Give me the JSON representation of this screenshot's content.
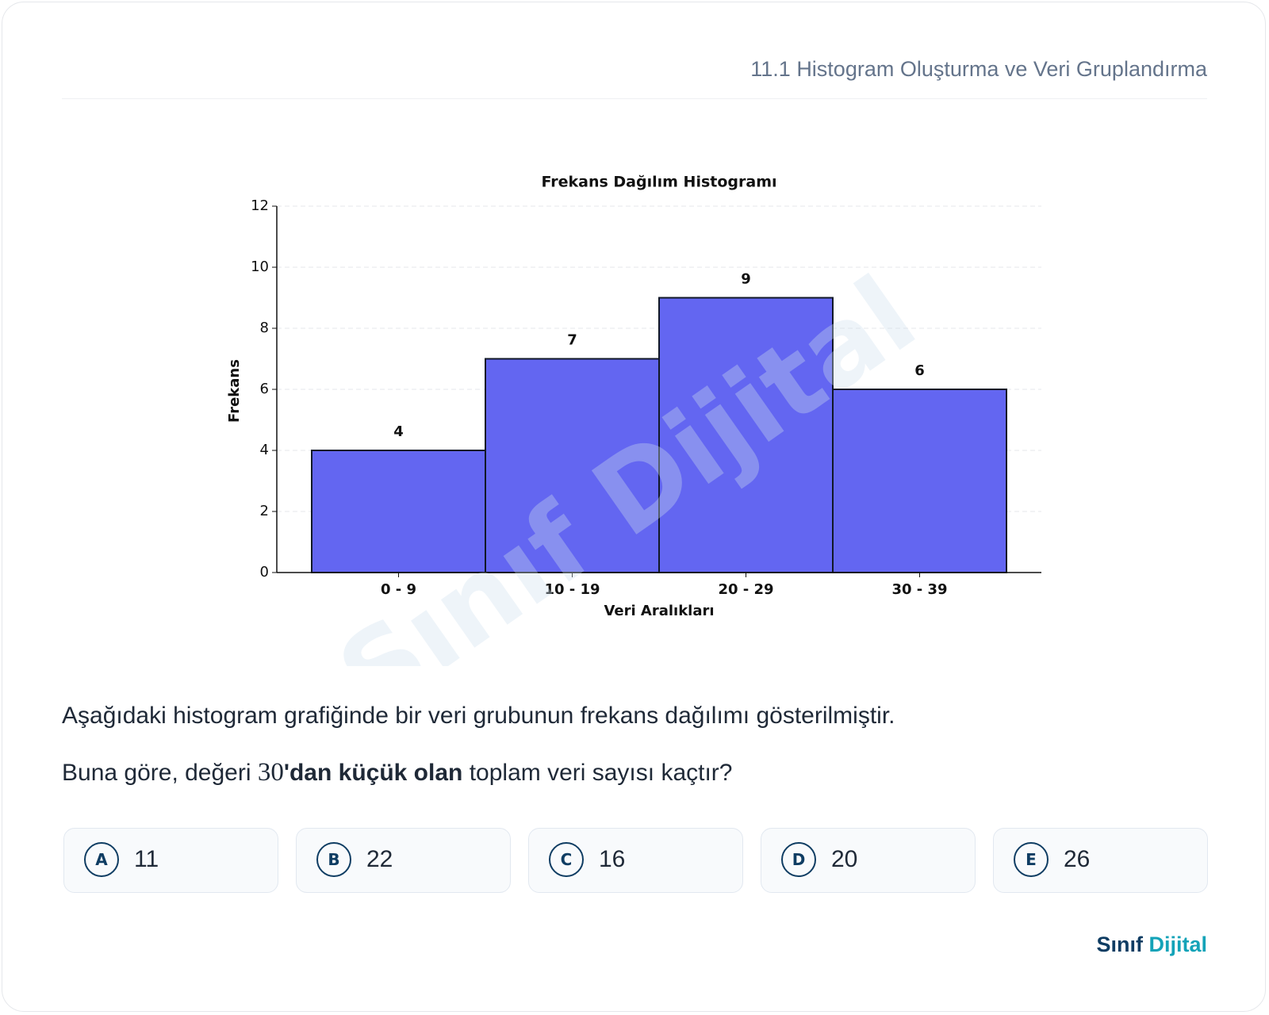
{
  "header": {
    "title": "11.1 Histogram Oluşturma ve Veri Gruplandırma"
  },
  "chart_data": {
    "type": "bar",
    "title": "Frekans Dağılım Histogramı",
    "x_label": "Veri Aralıkları",
    "y_label": "Frekans",
    "categories": [
      "0 - 9",
      "10 - 19",
      "20 - 29",
      "30 - 39"
    ],
    "values": [
      4,
      7,
      9,
      6
    ],
    "color": "#6366f1",
    "ylim": [
      0,
      12
    ],
    "yticks": [
      0,
      2,
      4,
      6,
      8,
      10,
      12
    ],
    "grid": true,
    "watermark": "Sınıf Dijital"
  },
  "question": {
    "line1": "Aşağıdaki histogram grafiğinde bir veri grubunun frekans dağılımı gösterilmiştir.",
    "line2": [
      "Buna göre, değeri ",
      "30",
      "'dan küçük olan",
      " toplam veri sayısı kaçtır?"
    ]
  },
  "options": [
    {
      "letter": "A",
      "text": "11"
    },
    {
      "letter": "B",
      "text": "22"
    },
    {
      "letter": "C",
      "text": "16"
    },
    {
      "letter": "D",
      "text": "20"
    },
    {
      "letter": "E",
      "text": "26"
    }
  ],
  "brand": [
    "Sınıf",
    "Dijital"
  ]
}
